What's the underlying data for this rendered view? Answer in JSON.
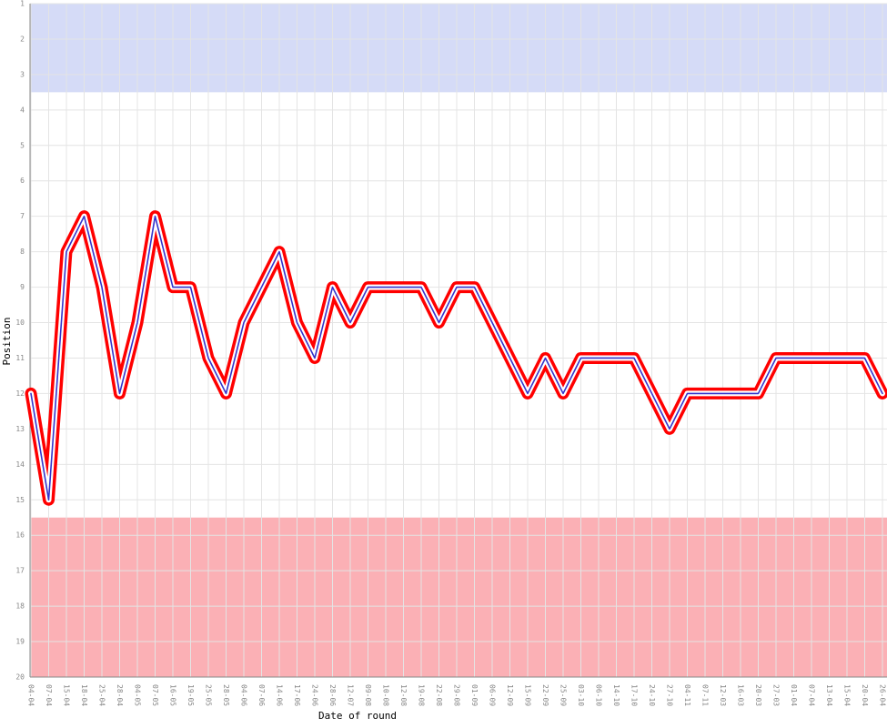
{
  "chart_data": {
    "type": "line",
    "x_label": "Date of round",
    "y_label": "Position",
    "categories": [
      "04-04",
      "07-04",
      "15-04",
      "18-04",
      "25-04",
      "28-04",
      "04-05",
      "07-05",
      "16-05",
      "19-05",
      "25-05",
      "28-05",
      "04-06",
      "07-06",
      "14-06",
      "17-06",
      "24-06",
      "28-06",
      "12-07",
      "09-08",
      "10-08",
      "12-08",
      "19-08",
      "22-08",
      "29-08",
      "01-09",
      "06-09",
      "12-09",
      "15-09",
      "22-09",
      "25-09",
      "03-10",
      "06-10",
      "14-10",
      "17-10",
      "24-10",
      "27-10",
      "04-11",
      "07-11",
      "12-03",
      "16-03",
      "20-03",
      "27-03",
      "01-04",
      "07-04",
      "13-04",
      "15-04",
      "20-04",
      "26-04"
    ],
    "values": [
      12,
      15,
      8,
      7,
      9,
      12,
      10,
      7,
      9,
      9,
      11,
      12,
      10,
      9,
      8,
      10,
      11,
      9,
      10,
      9,
      9,
      9,
      9,
      10,
      9,
      9,
      10,
      11,
      12,
      11,
      12,
      11,
      11,
      11,
      11,
      12,
      13,
      12,
      12,
      12,
      12,
      12,
      11,
      11,
      11,
      11,
      11,
      11,
      12
    ],
    "ylim": [
      1,
      20
    ],
    "y_inverted": true,
    "yticks": [
      1,
      2,
      3,
      4,
      5,
      6,
      7,
      8,
      9,
      10,
      11,
      12,
      13,
      14,
      15,
      16,
      17,
      18,
      19,
      20
    ],
    "grid": true,
    "color": "#3333cc",
    "outline_color": "#ff0000",
    "bands": [
      {
        "from": 1,
        "to": 3.5,
        "color": "#d5dbf7"
      },
      {
        "from": 15.5,
        "to": 20,
        "color": "#fbb0b5"
      }
    ]
  }
}
